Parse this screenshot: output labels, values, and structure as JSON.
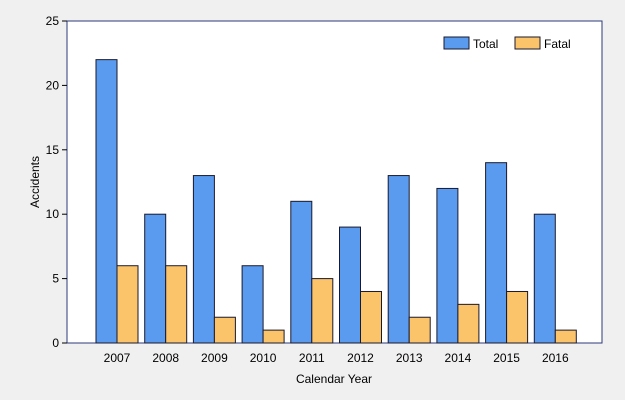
{
  "chart_data": {
    "type": "bar",
    "title": "",
    "xlabel": "Calendar Year",
    "ylabel": "Accidents",
    "categories": [
      "2007",
      "2008",
      "2009",
      "2010",
      "2011",
      "2012",
      "2013",
      "2014",
      "2015",
      "2016"
    ],
    "series": [
      {
        "name": "Total",
        "color": "#5b9bef",
        "values": [
          22,
          10,
          13,
          6,
          11,
          9,
          13,
          12,
          14,
          10
        ]
      },
      {
        "name": "Fatal",
        "color": "#fbc46a",
        "values": [
          6,
          6,
          2,
          1,
          5,
          4,
          2,
          3,
          4,
          1
        ]
      }
    ],
    "ylim": [
      0,
      25
    ],
    "yticks": [
      "0",
      "5",
      "10",
      "15",
      "20",
      "25"
    ],
    "grid": false,
    "legend_position": "top-right",
    "background_color": "#f0f0f0",
    "plot_background_color": "#ffffff",
    "frame_color": "#2b3a7a"
  }
}
